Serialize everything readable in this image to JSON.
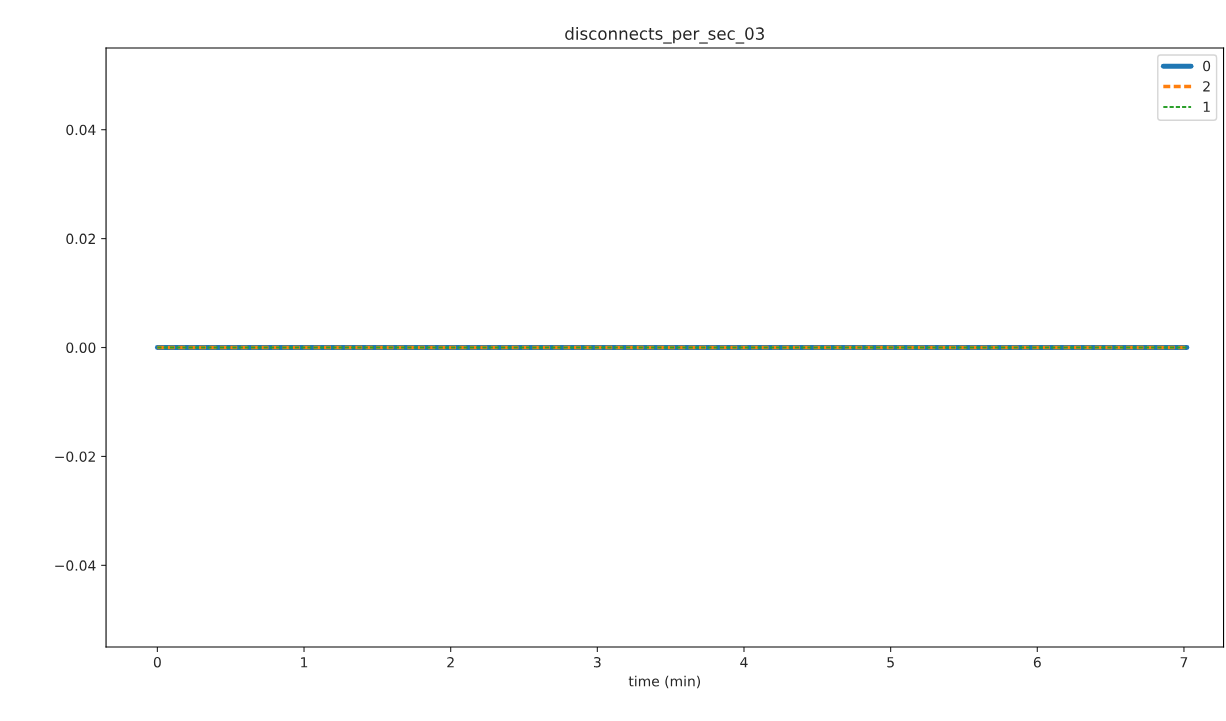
{
  "chart_data": {
    "type": "line",
    "title": "disconnects_per_sec_03",
    "xlabel": "time (min)",
    "x": [
      0,
      7.02
    ],
    "series": [
      {
        "name": "0",
        "color": "#1f77b4",
        "line_style": "solid",
        "values": [
          0,
          0
        ]
      },
      {
        "name": "2",
        "color": "#ff7f0e",
        "line_style": "dashed",
        "values": [
          0,
          0
        ]
      },
      {
        "name": "1",
        "color": "#2ca02c",
        "line_style": "dashed",
        "values": [
          0,
          0
        ]
      }
    ],
    "xlim": [
      -0.35,
      7.27
    ],
    "xticks": [
      0,
      1,
      2,
      3,
      4,
      5,
      6,
      7
    ],
    "ylim": [
      -0.055,
      0.055
    ],
    "yticks": [
      {
        "value": -0.04,
        "label": "−0.04"
      },
      {
        "value": -0.02,
        "label": "−0.02"
      },
      {
        "value": 0,
        "label": "0.00"
      },
      {
        "value": 0.02,
        "label": "0.02"
      },
      {
        "value": 0.04,
        "label": "0.04"
      }
    ],
    "grid": false,
    "legend": "top right"
  }
}
